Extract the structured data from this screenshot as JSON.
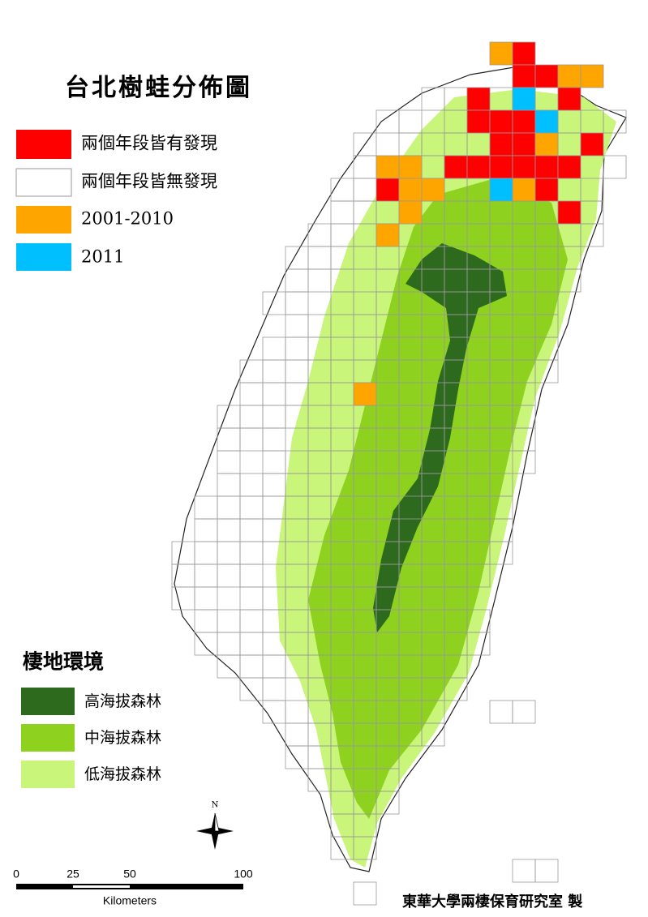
{
  "title": "台北樹蛙分佈圖",
  "legend": {
    "items": [
      "兩個年段皆有發現",
      "兩個年段皆無發現",
      "2001-2010",
      "2011"
    ]
  },
  "habitat_legend": {
    "title": "棲地環境",
    "items": [
      "高海拔森林",
      "中海拔森林",
      "低海拔森林"
    ]
  },
  "scale_bar": {
    "labels": [
      "0",
      "25",
      "50",
      "100"
    ],
    "unit": "Kilometers"
  },
  "north_label": "N",
  "credit": "東華大學兩棲保育研究室 製"
}
